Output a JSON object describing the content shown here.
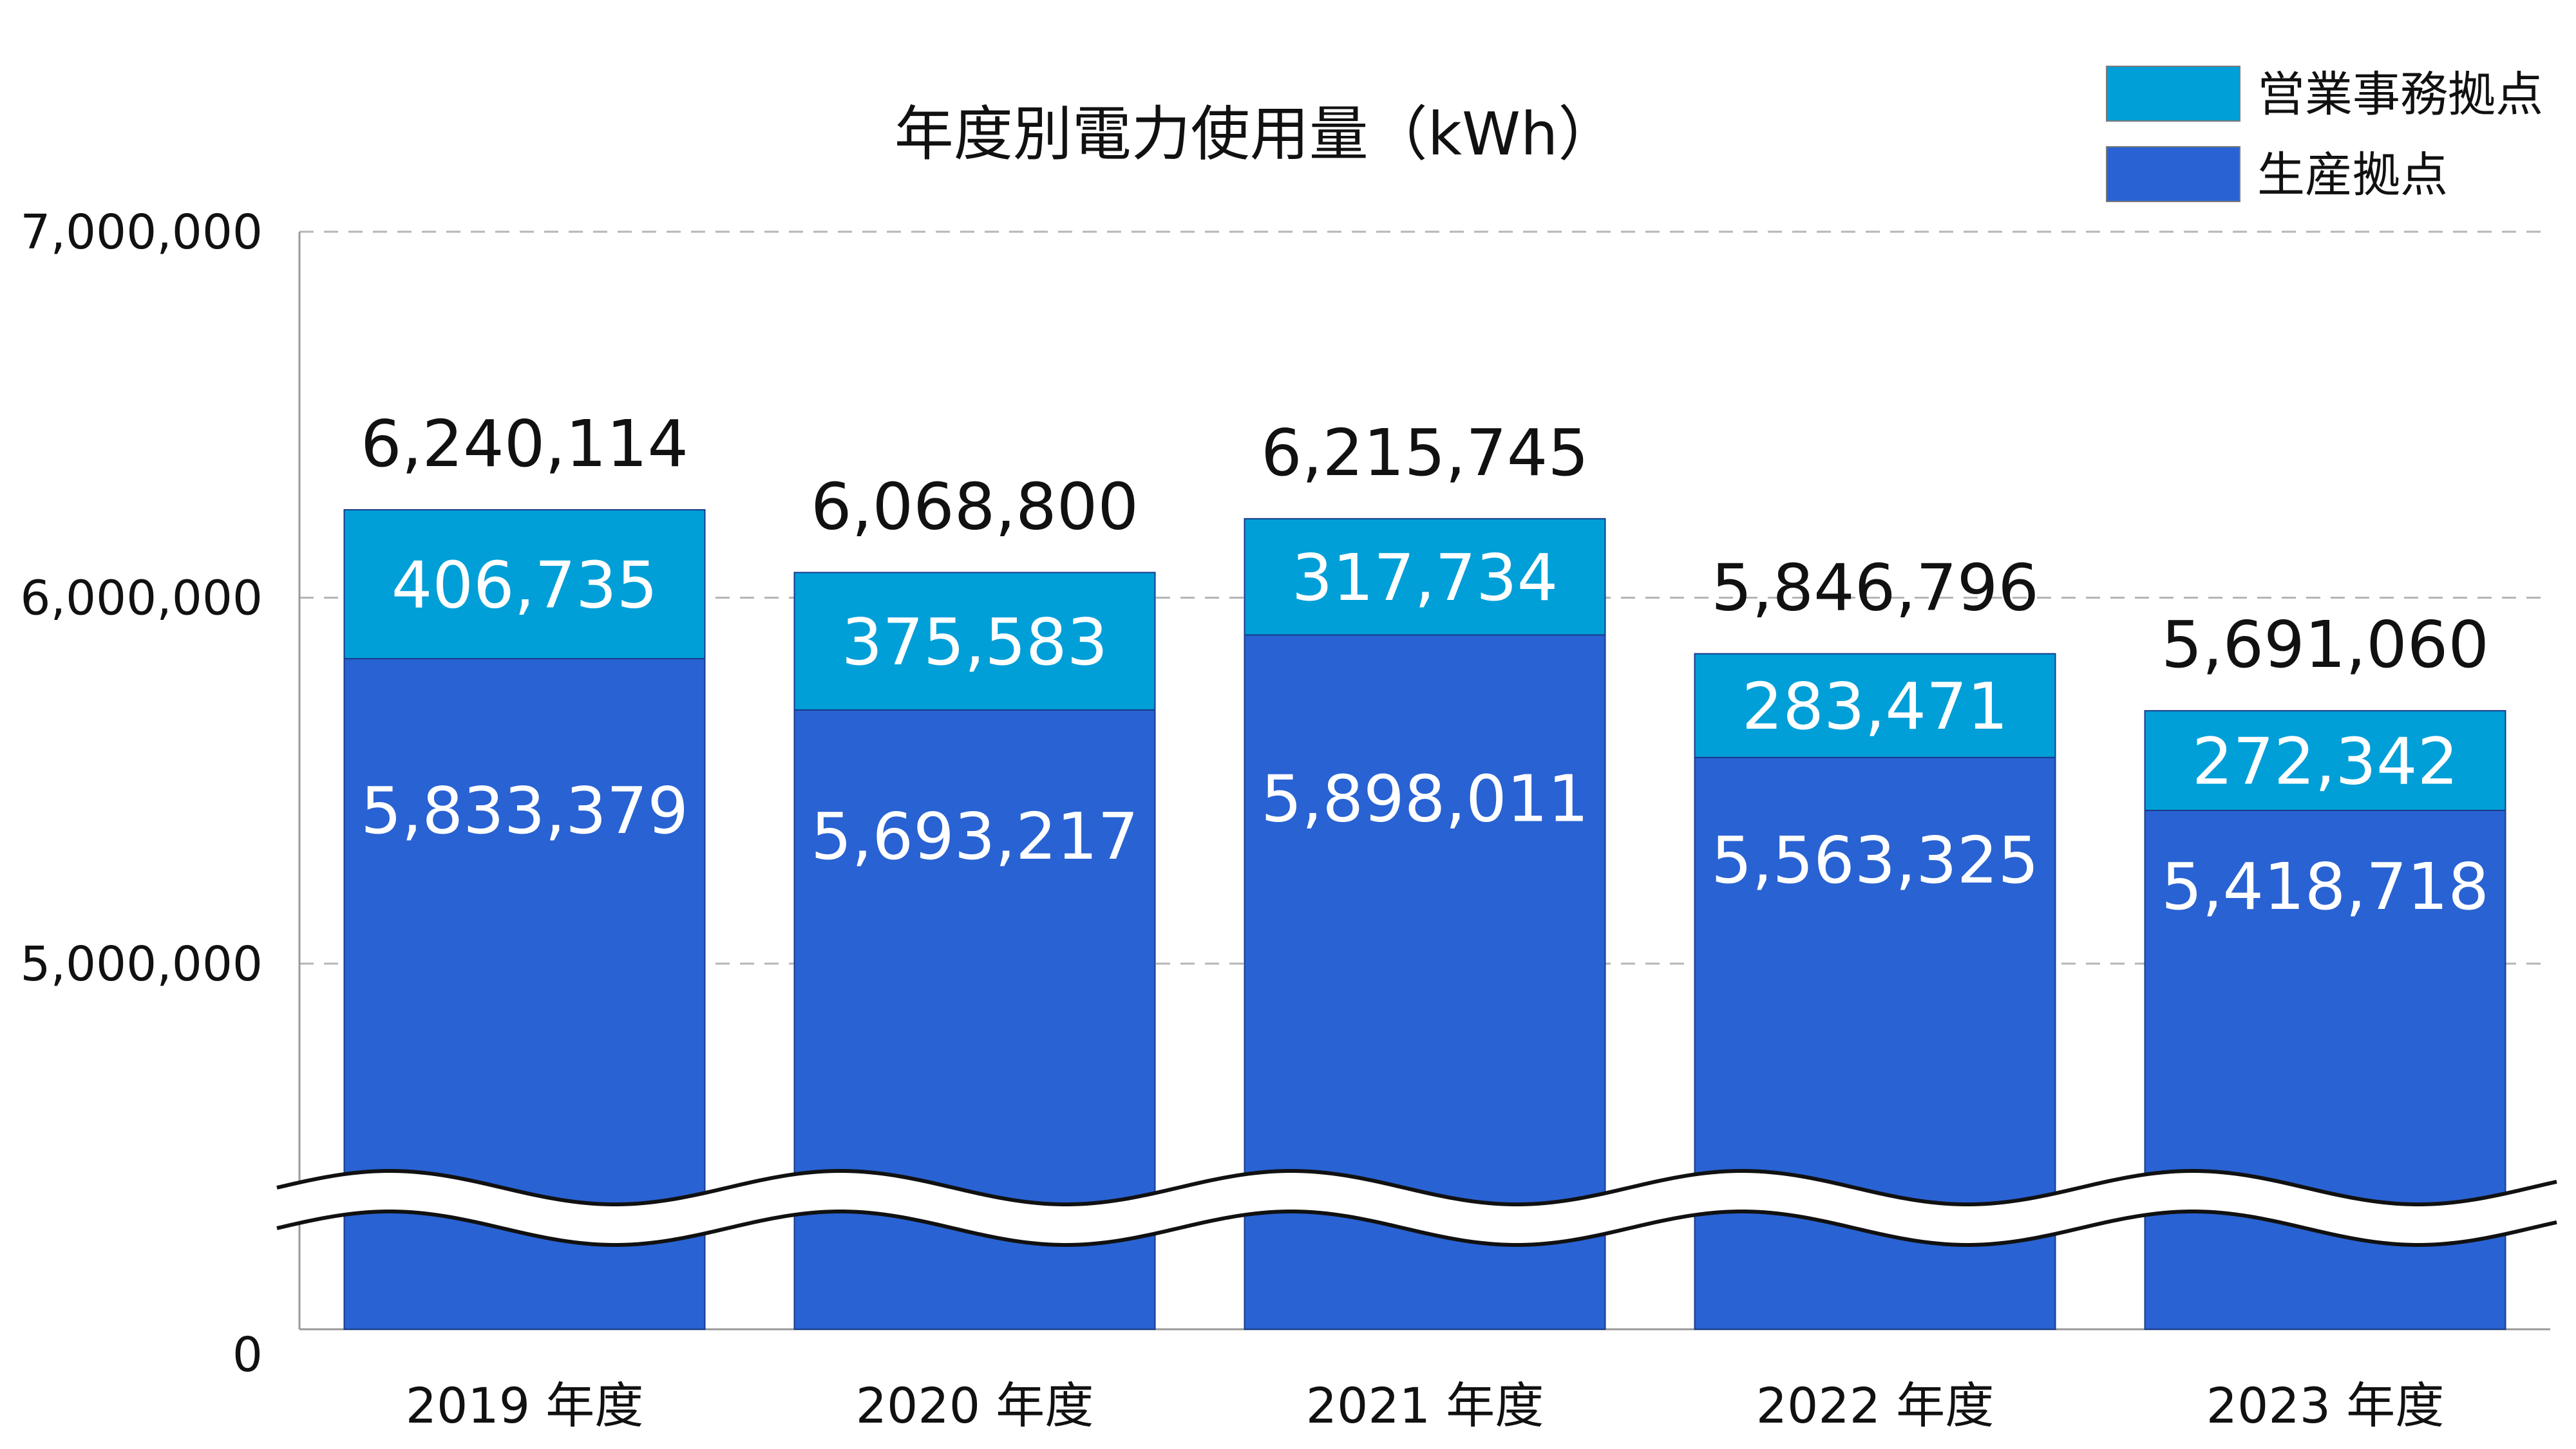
{
  "chart_data": {
    "type": "bar",
    "stacked": true,
    "title": "年度別電力使用量（kWh）",
    "categories": [
      "2019 年度",
      "2020 年度",
      "2021 年度",
      "2022 年度",
      "2023 年度"
    ],
    "series": [
      {
        "name": "生産拠点",
        "color": "#2962d2",
        "values": [
          5833379,
          5693217,
          5898011,
          5563325,
          5418718
        ],
        "labels": [
          "5,833,379",
          "5,693,217",
          "5,898,011",
          "5,563,325",
          "5,418,718"
        ]
      },
      {
        "name": "営業事務拠点",
        "color": "#009fd8",
        "values": [
          406735,
          375583,
          317734,
          283471,
          272342
        ],
        "labels": [
          "406,735",
          "375,583",
          "317,734",
          "283,471",
          "272,342"
        ]
      }
    ],
    "totals": [
      6240114,
      6068800,
      6215745,
      5846796,
      5691060
    ],
    "total_labels": [
      "6,240,114",
      "6,068,800",
      "6,215,745",
      "5,846,796",
      "5,691,060"
    ],
    "y_ticks": [
      {
        "value": 0,
        "label": "0"
      },
      {
        "value": 5000000,
        "label": "5,000,000"
      },
      {
        "value": 6000000,
        "label": "6,000,000"
      },
      {
        "value": 7000000,
        "label": "7,000,000"
      }
    ],
    "ylim": [
      0,
      7000000
    ],
    "axis_break": true,
    "grid": true,
    "legend_position": "top-right"
  }
}
